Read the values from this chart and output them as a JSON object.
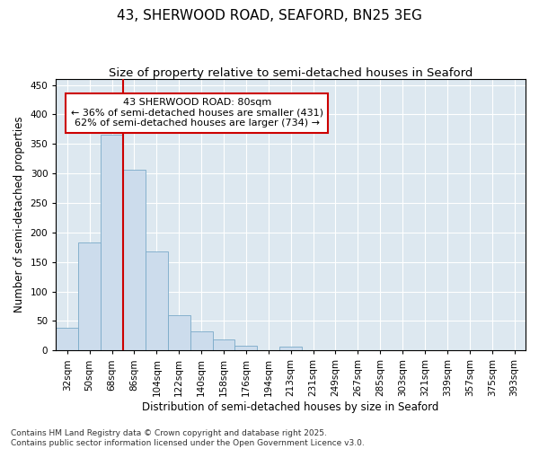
{
  "title_line1": "43, SHERWOOD ROAD, SEAFORD, BN25 3EG",
  "title_line2": "Size of property relative to semi-detached houses in Seaford",
  "xlabel": "Distribution of semi-detached houses by size in Seaford",
  "ylabel": "Number of semi-detached properties",
  "categories": [
    "32sqm",
    "50sqm",
    "68sqm",
    "86sqm",
    "104sqm",
    "122sqm",
    "140sqm",
    "158sqm",
    "176sqm",
    "194sqm",
    "213sqm",
    "231sqm",
    "249sqm",
    "267sqm",
    "285sqm",
    "303sqm",
    "321sqm",
    "339sqm",
    "357sqm",
    "375sqm",
    "393sqm"
  ],
  "values": [
    38,
    183,
    365,
    307,
    168,
    60,
    33,
    19,
    8,
    0,
    7,
    0,
    0,
    0,
    0,
    0,
    0,
    0,
    0,
    0,
    0
  ],
  "bar_color": "#ccdcec",
  "bar_edge_color": "#7aaac8",
  "marker_color": "#cc0000",
  "annotation_text_line1": "43 SHERWOOD ROAD: 80sqm",
  "annotation_text_line2": "← 36% of semi-detached houses are smaller (431)",
  "annotation_text_line3": "62% of semi-detached houses are larger (734) →",
  "annotation_box_color": "#ffffff",
  "annotation_box_edge": "#cc0000",
  "ylim": [
    0,
    460
  ],
  "yticks": [
    0,
    50,
    100,
    150,
    200,
    250,
    300,
    350,
    400,
    450
  ],
  "background_color": "#dde8f0",
  "footer_line1": "Contains HM Land Registry data © Crown copyright and database right 2025.",
  "footer_line2": "Contains public sector information licensed under the Open Government Licence v3.0.",
  "title_fontsize": 11,
  "subtitle_fontsize": 9.5,
  "axis_label_fontsize": 8.5,
  "tick_fontsize": 7.5,
  "annotation_fontsize": 8,
  "footer_fontsize": 6.5
}
